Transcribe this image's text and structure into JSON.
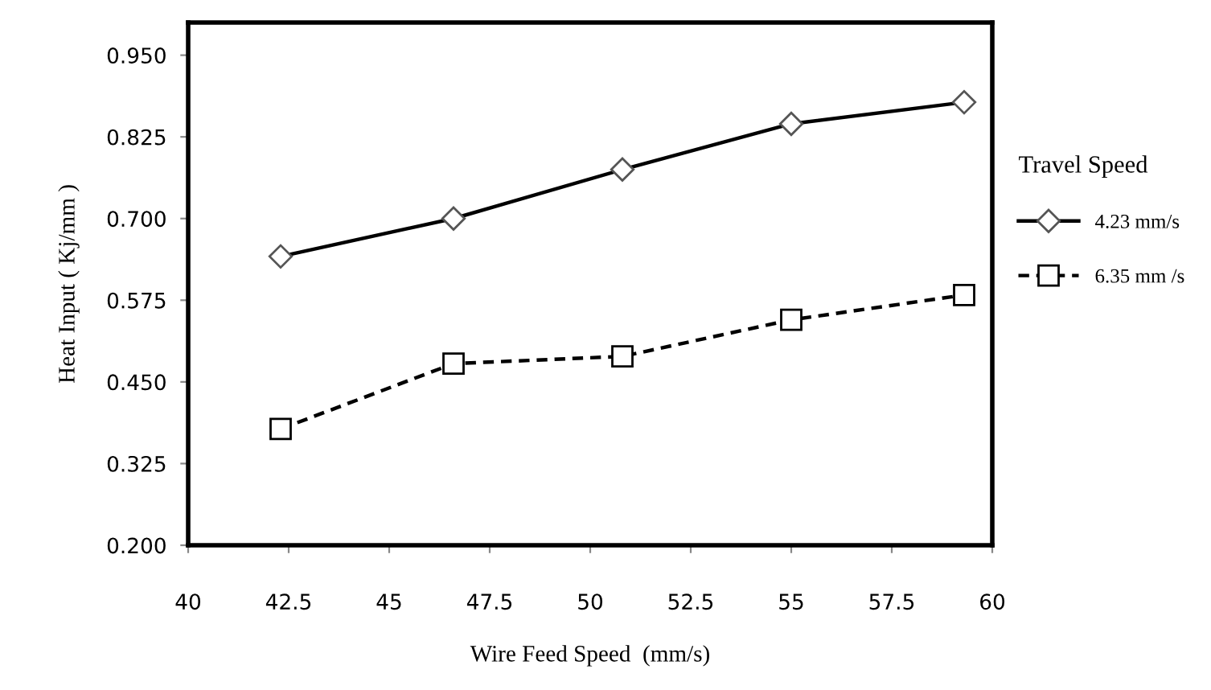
{
  "chart_data": {
    "type": "line",
    "xlabel": "Wire Feed Speed  (mm/s)",
    "ylabel": "Heat Input ( Kj/mm )",
    "legend_title": "Travel Speed",
    "series": [
      {
        "name": "4.23 mm/s",
        "color": "#000000",
        "marker": "diamond",
        "line_style": "solid",
        "x": [
          42.3,
          46.6,
          50.8,
          55.0,
          59.3
        ],
        "values": [
          0.642,
          0.7,
          0.775,
          0.845,
          0.878
        ]
      },
      {
        "name": "6.35 mm /s",
        "color": "#000000",
        "marker": "square",
        "line_style": "dashed",
        "x": [
          42.3,
          46.6,
          50.8,
          55.0,
          59.3
        ],
        "values": [
          0.378,
          0.478,
          0.489,
          0.545,
          0.583
        ]
      }
    ],
    "xlim": [
      40,
      60
    ],
    "xticks": [
      40,
      42.5,
      45,
      47.5,
      50,
      52.5,
      55,
      57.5,
      60
    ],
    "ylim": [
      0.2,
      1.0
    ],
    "yticks": [
      {
        "value": 0.2,
        "label": "0.200"
      },
      {
        "value": 0.325,
        "label": "0.325"
      },
      {
        "value": 0.45,
        "label": "0.450"
      },
      {
        "value": 0.575,
        "label": "0.575"
      },
      {
        "value": 0.7,
        "label": "0.700"
      },
      {
        "value": 0.825,
        "label": "0.825"
      },
      {
        "value": 0.95,
        "label": "0.950"
      }
    ],
    "grid": false,
    "legend": "right"
  }
}
